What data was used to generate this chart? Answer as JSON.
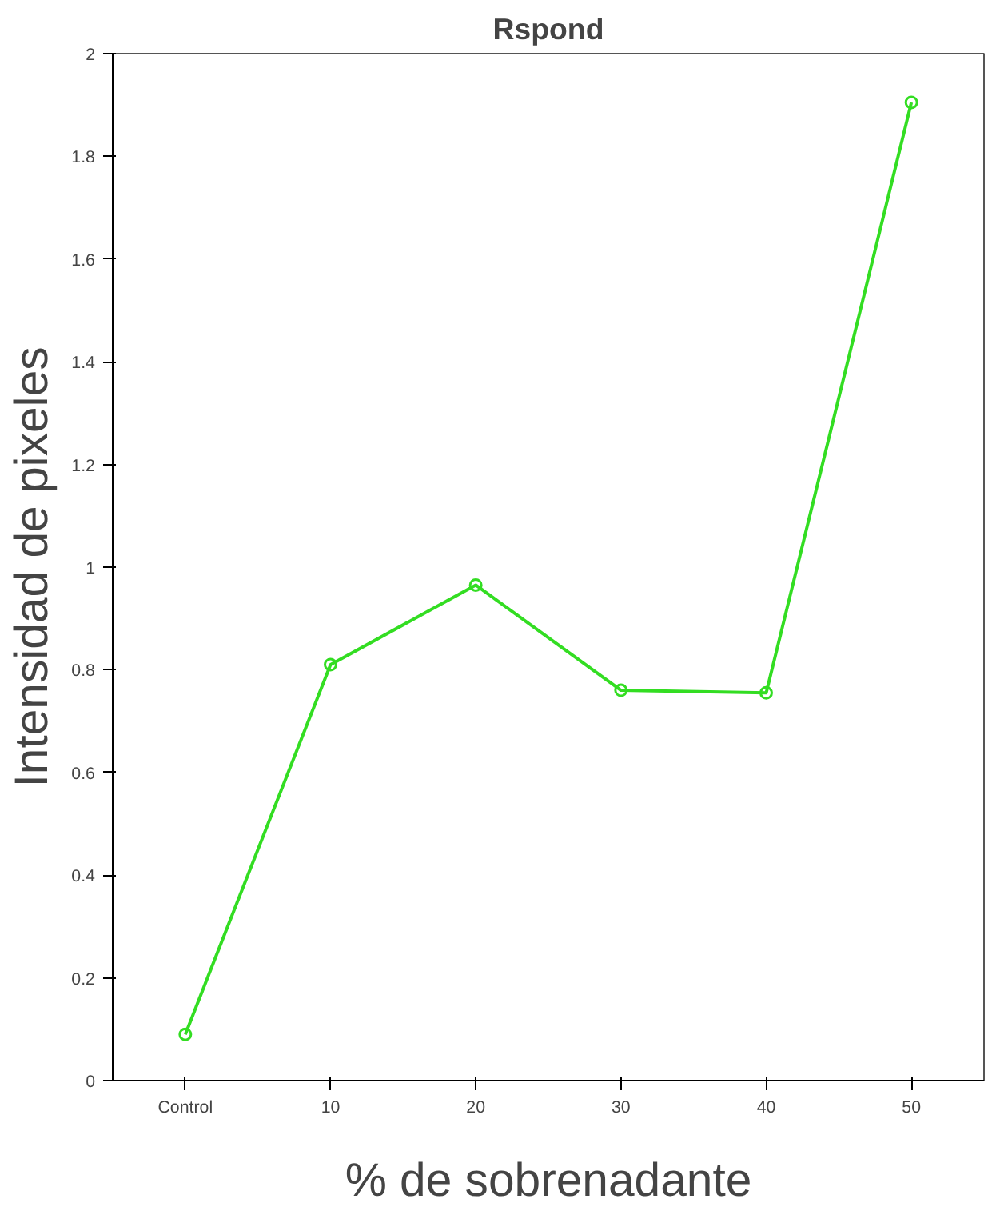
{
  "chart_data": {
    "type": "line",
    "title": "Rspond",
    "xlabel": "% de sobrenadante",
    "ylabel": "Intensidad de pixeles",
    "categories": [
      "Control",
      "10",
      "20",
      "30",
      "40",
      "50"
    ],
    "series": [
      {
        "color": "#33dd22",
        "values": [
          0.09,
          0.81,
          0.965,
          0.76,
          0.755,
          1.905
        ]
      }
    ],
    "ylim": [
      0,
      2
    ],
    "yticks": [
      0,
      0.2,
      0.4,
      0.6,
      0.8,
      1,
      1.2,
      1.4,
      1.6,
      1.8,
      2
    ],
    "marker": "circle",
    "line_style": "solid"
  }
}
